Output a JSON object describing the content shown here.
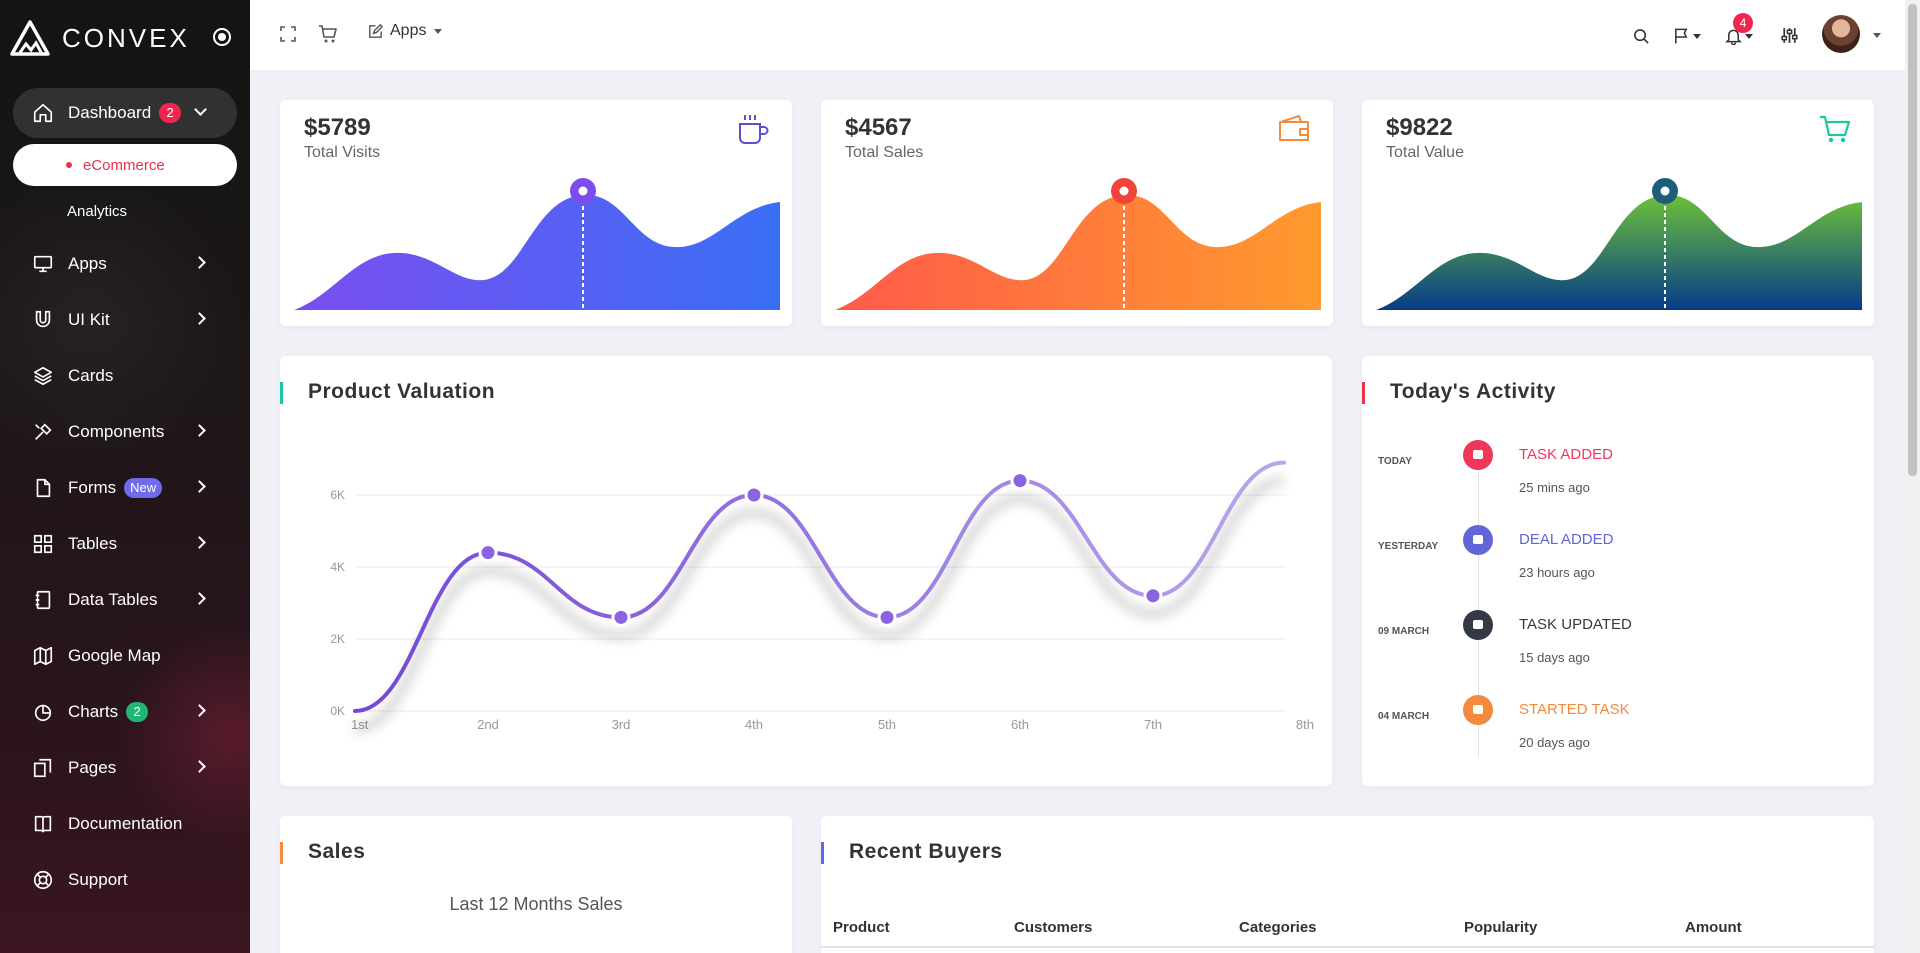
{
  "brand": {
    "name": "CONVEX"
  },
  "sidebar": {
    "items": [
      {
        "label": "Dashboard",
        "icon": "home-icon",
        "badge": "2"
      },
      {
        "label": "eCommerce"
      },
      {
        "label": "Analytics"
      },
      {
        "label": "Apps",
        "icon": "monitor-icon"
      },
      {
        "label": "UI Kit",
        "icon": "magnet-icon"
      },
      {
        "label": "Cards",
        "icon": "layers-icon"
      },
      {
        "label": "Components",
        "icon": "tools-icon"
      },
      {
        "label": "Forms",
        "icon": "file-icon",
        "badge": "New"
      },
      {
        "label": "Tables",
        "icon": "grid-icon"
      },
      {
        "label": "Data Tables",
        "icon": "notebook-icon"
      },
      {
        "label": "Google Map",
        "icon": "map-icon"
      },
      {
        "label": "Charts",
        "icon": "pie-chart-icon",
        "badge": "2"
      },
      {
        "label": "Pages",
        "icon": "copy-icon"
      },
      {
        "label": "Documentation",
        "icon": "book-icon"
      },
      {
        "label": "Support",
        "icon": "lifebuoy-icon"
      }
    ]
  },
  "topbar": {
    "apps_label": "Apps",
    "notification_count": "4"
  },
  "stats": [
    {
      "value": "$5789",
      "label": "Total Visits",
      "icon": "coffee-cup-icon",
      "colors": [
        "#7b4df0",
        "#3a6ff4"
      ],
      "pin": "#7b4df0"
    },
    {
      "value": "$4567",
      "label": "Total Sales",
      "icon": "wallet-icon",
      "colors": [
        "#ff5a4a",
        "#ff9a2e"
      ],
      "pin": "#f0433a"
    },
    {
      "value": "$9822",
      "label": "Total Value",
      "icon": "shopping-cart-icon",
      "colors": [
        "#063b87",
        "#6cc13a"
      ],
      "pin": "#1d5d7a"
    }
  ],
  "product_valuation": {
    "title": "Product Valuation",
    "chart_data": {
      "type": "line",
      "categories": [
        "1st",
        "2nd",
        "3rd",
        "4th",
        "5th",
        "6th",
        "7th",
        "8th"
      ],
      "values": [
        0,
        4.4,
        2.6,
        6.0,
        2.6,
        6.4,
        3.2,
        6.9
      ],
      "y_ticks": [
        "0K",
        "2K",
        "4K",
        "6K"
      ],
      "ylim": [
        0,
        8
      ],
      "grid": true,
      "color": "#7d55e0"
    }
  },
  "activity": {
    "title": "Today's Activity",
    "items": [
      {
        "day": "TODAY",
        "title": "TASK ADDED",
        "ago": "25 mins ago",
        "color": "#f0375a"
      },
      {
        "day": "YESTERDAY",
        "title": "DEAL ADDED",
        "ago": "23 hours ago",
        "color": "#6265d8"
      },
      {
        "day": "09 MARCH",
        "title": "TASK UPDATED",
        "ago": "15 days ago",
        "color": "#333a45"
      },
      {
        "day": "04 MARCH",
        "title": "STARTED TASK",
        "ago": "20 days ago",
        "color": "#f58a3d"
      }
    ]
  },
  "sales": {
    "title": "Sales",
    "subtitle": "Last 12 Months Sales"
  },
  "recent_buyers": {
    "title": "Recent Buyers",
    "columns": [
      "Product",
      "Customers",
      "Categories",
      "Popularity",
      "Amount"
    ]
  }
}
